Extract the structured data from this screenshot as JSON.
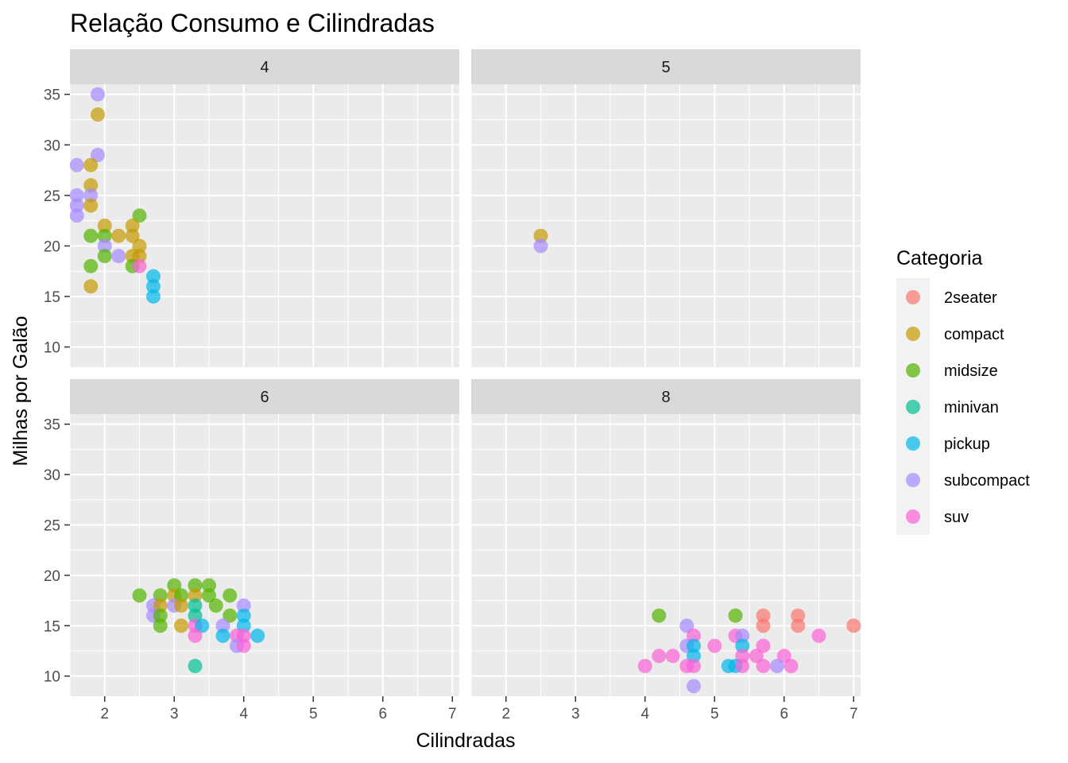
{
  "chart_data": {
    "type": "scatter",
    "title": "Relação Consumo e Cilindradas",
    "xlabel": "Cilindradas",
    "ylabel": "Milhas por Galão",
    "xlim": [
      1.5,
      7.1
    ],
    "ylim": [
      8.0,
      36.0
    ],
    "x_ticks": [
      2,
      3,
      4,
      5,
      6,
      7
    ],
    "y_ticks": [
      10,
      15,
      20,
      25,
      30,
      35
    ],
    "grid": true,
    "facet_by": "cyl",
    "legend": {
      "title": "Categoria",
      "position": "right",
      "entries": [
        {
          "name": "2seater",
          "color": "#F8766D"
        },
        {
          "name": "compact",
          "color": "#C49A00"
        },
        {
          "name": "midsize",
          "color": "#53B400"
        },
        {
          "name": "minivan",
          "color": "#00C094"
        },
        {
          "name": "pickup",
          "color": "#00B6EB"
        },
        {
          "name": "subcompact",
          "color": "#A58AFF"
        },
        {
          "name": "suv",
          "color": "#FB61D7"
        }
      ]
    },
    "facets": [
      {
        "label": "4",
        "points": [
          {
            "x": 1.9,
            "y": 35,
            "c": "subcompact"
          },
          {
            "x": 1.9,
            "y": 33,
            "c": "compact"
          },
          {
            "x": 1.9,
            "y": 29,
            "c": "subcompact"
          },
          {
            "x": 1.6,
            "y": 28,
            "c": "subcompact"
          },
          {
            "x": 1.8,
            "y": 28,
            "c": "compact"
          },
          {
            "x": 1.8,
            "y": 26,
            "c": "compact"
          },
          {
            "x": 1.8,
            "y": 25,
            "c": "subcompact"
          },
          {
            "x": 1.6,
            "y": 25,
            "c": "subcompact"
          },
          {
            "x": 1.6,
            "y": 24,
            "c": "subcompact"
          },
          {
            "x": 1.8,
            "y": 24,
            "c": "compact"
          },
          {
            "x": 1.6,
            "y": 23,
            "c": "subcompact"
          },
          {
            "x": 2.5,
            "y": 23,
            "c": "midsize"
          },
          {
            "x": 2.0,
            "y": 22,
            "c": "compact"
          },
          {
            "x": 2.4,
            "y": 22,
            "c": "compact"
          },
          {
            "x": 1.8,
            "y": 21,
            "c": "midsize"
          },
          {
            "x": 2.0,
            "y": 21,
            "c": "midsize"
          },
          {
            "x": 2.2,
            "y": 21,
            "c": "compact"
          },
          {
            "x": 2.4,
            "y": 21,
            "c": "compact"
          },
          {
            "x": 2.0,
            "y": 20,
            "c": "subcompact"
          },
          {
            "x": 2.5,
            "y": 20,
            "c": "compact"
          },
          {
            "x": 2.0,
            "y": 19,
            "c": "midsize"
          },
          {
            "x": 2.2,
            "y": 19,
            "c": "subcompact"
          },
          {
            "x": 2.4,
            "y": 19,
            "c": "compact"
          },
          {
            "x": 2.5,
            "y": 19,
            "c": "compact"
          },
          {
            "x": 1.8,
            "y": 18,
            "c": "midsize"
          },
          {
            "x": 2.4,
            "y": 18,
            "c": "midsize"
          },
          {
            "x": 2.5,
            "y": 18,
            "c": "suv"
          },
          {
            "x": 2.7,
            "y": 17,
            "c": "pickup"
          },
          {
            "x": 2.7,
            "y": 16,
            "c": "pickup"
          },
          {
            "x": 1.8,
            "y": 16,
            "c": "compact"
          },
          {
            "x": 2.7,
            "y": 15,
            "c": "pickup"
          }
        ]
      },
      {
        "label": "5",
        "points": [
          {
            "x": 2.5,
            "y": 21,
            "c": "compact"
          },
          {
            "x": 2.5,
            "y": 20,
            "c": "subcompact"
          }
        ]
      },
      {
        "label": "6",
        "points": [
          {
            "x": 2.5,
            "y": 18,
            "c": "midsize"
          },
          {
            "x": 2.8,
            "y": 18,
            "c": "midsize"
          },
          {
            "x": 3.0,
            "y": 19,
            "c": "midsize"
          },
          {
            "x": 3.3,
            "y": 19,
            "c": "midsize"
          },
          {
            "x": 3.5,
            "y": 19,
            "c": "midsize"
          },
          {
            "x": 3.0,
            "y": 18,
            "c": "compact"
          },
          {
            "x": 3.1,
            "y": 18,
            "c": "midsize"
          },
          {
            "x": 3.3,
            "y": 18,
            "c": "compact"
          },
          {
            "x": 3.5,
            "y": 18,
            "c": "midsize"
          },
          {
            "x": 3.8,
            "y": 18,
            "c": "midsize"
          },
          {
            "x": 2.7,
            "y": 17,
            "c": "subcompact"
          },
          {
            "x": 2.8,
            "y": 17,
            "c": "compact"
          },
          {
            "x": 3.0,
            "y": 17,
            "c": "subcompact"
          },
          {
            "x": 3.1,
            "y": 17,
            "c": "compact"
          },
          {
            "x": 3.3,
            "y": 17,
            "c": "minivan"
          },
          {
            "x": 3.6,
            "y": 17,
            "c": "midsize"
          },
          {
            "x": 4.0,
            "y": 17,
            "c": "subcompact"
          },
          {
            "x": 2.7,
            "y": 16,
            "c": "subcompact"
          },
          {
            "x": 2.8,
            "y": 16,
            "c": "midsize"
          },
          {
            "x": 3.3,
            "y": 16,
            "c": "minivan"
          },
          {
            "x": 3.8,
            "y": 16,
            "c": "midsize"
          },
          {
            "x": 4.0,
            "y": 16,
            "c": "pickup"
          },
          {
            "x": 2.8,
            "y": 15,
            "c": "midsize"
          },
          {
            "x": 3.1,
            "y": 15,
            "c": "compact"
          },
          {
            "x": 3.3,
            "y": 15,
            "c": "suv"
          },
          {
            "x": 3.4,
            "y": 15,
            "c": "pickup"
          },
          {
            "x": 3.7,
            "y": 15,
            "c": "subcompact"
          },
          {
            "x": 4.0,
            "y": 15,
            "c": "pickup"
          },
          {
            "x": 3.3,
            "y": 14,
            "c": "suv"
          },
          {
            "x": 3.7,
            "y": 14,
            "c": "pickup"
          },
          {
            "x": 3.9,
            "y": 14,
            "c": "suv"
          },
          {
            "x": 4.0,
            "y": 14,
            "c": "suv"
          },
          {
            "x": 4.2,
            "y": 14,
            "c": "pickup"
          },
          {
            "x": 3.9,
            "y": 13,
            "c": "subcompact"
          },
          {
            "x": 4.0,
            "y": 13,
            "c": "suv"
          },
          {
            "x": 3.3,
            "y": 11,
            "c": "minivan"
          }
        ]
      },
      {
        "label": "8",
        "points": [
          {
            "x": 4.2,
            "y": 16,
            "c": "midsize"
          },
          {
            "x": 5.3,
            "y": 16,
            "c": "midsize"
          },
          {
            "x": 5.7,
            "y": 16,
            "c": "2seater"
          },
          {
            "x": 6.2,
            "y": 16,
            "c": "2seater"
          },
          {
            "x": 4.6,
            "y": 15,
            "c": "subcompact"
          },
          {
            "x": 5.7,
            "y": 15,
            "c": "2seater"
          },
          {
            "x": 6.2,
            "y": 15,
            "c": "2seater"
          },
          {
            "x": 7.0,
            "y": 15,
            "c": "2seater"
          },
          {
            "x": 4.7,
            "y": 14,
            "c": "suv"
          },
          {
            "x": 5.3,
            "y": 14,
            "c": "suv"
          },
          {
            "x": 5.4,
            "y": 14,
            "c": "subcompact"
          },
          {
            "x": 6.5,
            "y": 14,
            "c": "suv"
          },
          {
            "x": 4.6,
            "y": 13,
            "c": "subcompact"
          },
          {
            "x": 4.7,
            "y": 13,
            "c": "pickup"
          },
          {
            "x": 5.0,
            "y": 13,
            "c": "suv"
          },
          {
            "x": 5.4,
            "y": 13,
            "c": "pickup"
          },
          {
            "x": 5.7,
            "y": 13,
            "c": "suv"
          },
          {
            "x": 4.2,
            "y": 12,
            "c": "suv"
          },
          {
            "x": 4.4,
            "y": 12,
            "c": "suv"
          },
          {
            "x": 4.7,
            "y": 12,
            "c": "pickup"
          },
          {
            "x": 5.4,
            "y": 12,
            "c": "suv"
          },
          {
            "x": 5.6,
            "y": 12,
            "c": "suv"
          },
          {
            "x": 6.0,
            "y": 12,
            "c": "suv"
          },
          {
            "x": 4.0,
            "y": 11,
            "c": "suv"
          },
          {
            "x": 4.6,
            "y": 11,
            "c": "suv"
          },
          {
            "x": 4.7,
            "y": 11,
            "c": "suv"
          },
          {
            "x": 5.2,
            "y": 11,
            "c": "pickup"
          },
          {
            "x": 5.3,
            "y": 11,
            "c": "pickup"
          },
          {
            "x": 5.4,
            "y": 11,
            "c": "suv"
          },
          {
            "x": 5.7,
            "y": 11,
            "c": "suv"
          },
          {
            "x": 5.9,
            "y": 11,
            "c": "subcompact"
          },
          {
            "x": 6.1,
            "y": 11,
            "c": "suv"
          },
          {
            "x": 4.7,
            "y": 9,
            "c": "subcompact"
          }
        ]
      }
    ]
  }
}
